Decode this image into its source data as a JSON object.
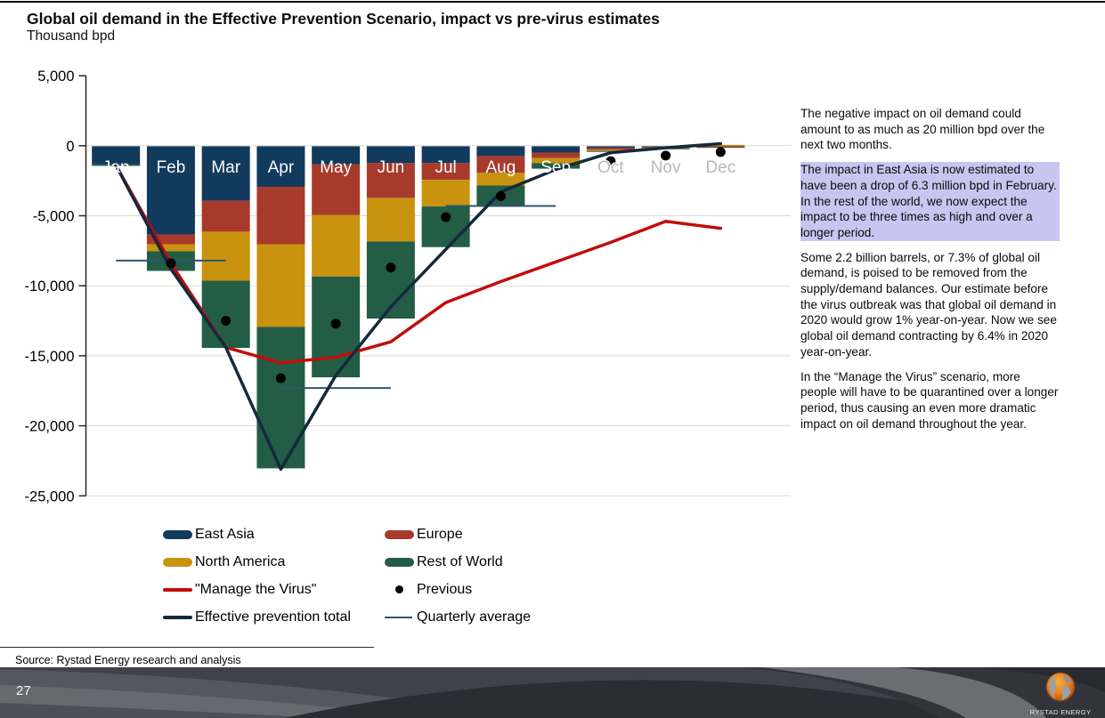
{
  "header": {
    "title": "Global oil demand in the Effective Prevention Scenario, impact vs pre-virus estimates",
    "subtitle": "Thousand bpd"
  },
  "chart_data": {
    "type": "bar",
    "subtype": "stacked-bars-with-lines",
    "unit": "thousand bpd",
    "categories": [
      "Jan",
      "Feb",
      "Mar",
      "Apr",
      "May",
      "Jun",
      "Jul",
      "Aug",
      "Sep",
      "Oct",
      "Nov",
      "Dec"
    ],
    "faded_categories": [
      "Oct",
      "Nov",
      "Dec"
    ],
    "y_axis": {
      "min": -25000,
      "max": 5000,
      "tick_step": 5000,
      "ticks": [
        {
          "label": "5,000",
          "value": 5000
        },
        {
          "label": "0",
          "value": 0
        },
        {
          "label": "-5,000",
          "value": -5000
        },
        {
          "label": "-10,000",
          "value": -10000
        },
        {
          "label": "-15,000",
          "value": -15000
        },
        {
          "label": "-20,000",
          "value": -20000
        },
        {
          "label": "-25,000",
          "value": -25000
        }
      ],
      "gridline_values": [
        0,
        -5000,
        -10000,
        -15000,
        -20000,
        -25000
      ]
    },
    "series": [
      {
        "name": "East Asia",
        "color": "#123a5c",
        "values": [
          -1300,
          -6300,
          -3900,
          -2900,
          -1300,
          -1200,
          -1200,
          -700,
          -450,
          -100,
          -50,
          -50
        ]
      },
      {
        "name": "Europe",
        "color": "#a73a2b",
        "values": [
          0,
          -700,
          -2200,
          -4100,
          -3600,
          -2500,
          -1200,
          -1200,
          -400,
          -150,
          -60,
          -60
        ]
      },
      {
        "name": "North America",
        "color": "#c9920f",
        "values": [
          0,
          -500,
          -3500,
          -5900,
          -4400,
          -3100,
          -1900,
          -900,
          -350,
          -80,
          -40,
          100
        ]
      },
      {
        "name": "Rest of World",
        "color": "#235d45",
        "values": [
          -100,
          -1400,
          -4800,
          -10100,
          -7200,
          -5500,
          -2900,
          -1400,
          -400,
          -70,
          -30,
          0
        ]
      }
    ],
    "lines": [
      {
        "name": "\"Manage the Virus\"",
        "color": "#c00d0d",
        "width": 3.5,
        "values": [
          -1400,
          -8400,
          -14400,
          -15500,
          -15100,
          -14000,
          -11200,
          -9700,
          -8300,
          -6900,
          -5400,
          -5900
        ]
      },
      {
        "name": "Effective prevention total",
        "color": "#14293d",
        "width": 3.5,
        "values": [
          -1400,
          -8800,
          -14400,
          -23100,
          -16400,
          -11500,
          -7400,
          -3300,
          -1700,
          -500,
          -150,
          150
        ]
      }
    ],
    "points": {
      "name": "Previous",
      "color": "#000000",
      "values": [
        null,
        -8400,
        -12500,
        -16600,
        -12700,
        -8700,
        -5100,
        -3600,
        null,
        -1100,
        -700,
        -450
      ]
    },
    "quarterly_average": {
      "name": "Quarterly average",
      "color": "#2e5570",
      "segments": [
        {
          "from": "Jan",
          "to": "Mar",
          "value": -8200
        },
        {
          "from": "Apr",
          "to": "Jun",
          "value": -17300
        },
        {
          "from": "Jul",
          "to": "Sep",
          "value": -4300
        }
      ]
    },
    "month_label_color": "#fbfbfb",
    "month_label_faded_color": "#b5b8bd"
  },
  "legend": {
    "items": [
      {
        "label": "East Asia",
        "swatch": "bar",
        "color": "#123a5c"
      },
      {
        "label": "Europe",
        "swatch": "bar",
        "color": "#a73a2b"
      },
      {
        "label": "North America",
        "swatch": "bar",
        "color": "#c9920f"
      },
      {
        "label": "Rest of World",
        "swatch": "bar",
        "color": "#235d45"
      },
      {
        "label": "\"Manage the Virus\"",
        "swatch": "line",
        "color": "#c00d0d"
      },
      {
        "label": "Previous",
        "swatch": "dot",
        "color": "#000000"
      },
      {
        "label": "Effective prevention total",
        "swatch": "line",
        "color": "#14293d"
      },
      {
        "label": "Quarterly average",
        "swatch": "thin",
        "color": "#2e5570"
      }
    ]
  },
  "side_text": {
    "paragraphs": [
      {
        "highlighted": false,
        "text": "The negative impact on oil demand could amount to as much as 20 million bpd over the next two months."
      },
      {
        "highlighted": true,
        "text": "The impact in East Asia is now estimated to have been a drop of 6.3 million bpd in February. In the rest of the world, we now expect the impact to be three times as high and over a longer period."
      },
      {
        "highlighted": false,
        "text": "Some 2.2 billion barrels, or 7.3% of global oil demand, is poised to be removed from the supply/demand balances. Our estimate before the virus outbreak was that global oil demand in 2020 would grow 1% year-on-year. Now we see global oil demand contracting by 6.4% in 2020 year-on-year."
      },
      {
        "highlighted": false,
        "text": "In the “Manage the Virus” scenario, more people will have to be quarantined over a longer period, thus causing an even more dramatic impact on oil demand throughout the year."
      }
    ],
    "highlight_color": "#c8c6f1"
  },
  "source": "Source: Rystad Energy research and analysis",
  "footer": {
    "page_number": "27",
    "logo_text": "RYSTAD ENERGY"
  }
}
